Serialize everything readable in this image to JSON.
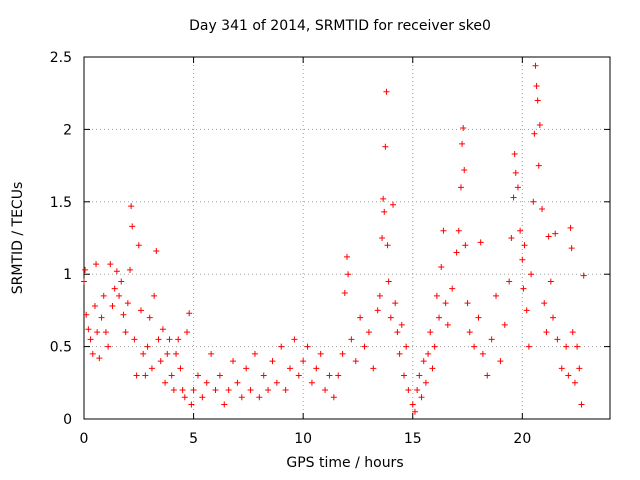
{
  "chart_data": {
    "type": "scatter",
    "title": "Day 341 of 2014, SRMTID for receiver ske0",
    "xlabel": "GPS time / hours",
    "ylabel": "SRMTID / TECUs",
    "xlim": [
      0,
      24
    ],
    "ylim": [
      0,
      2.5
    ],
    "xticks": [
      0,
      5,
      10,
      15,
      20
    ],
    "xtick_labels": [
      "0",
      "5",
      "10",
      "15",
      "20"
    ],
    "yticks": [
      0,
      0.5,
      1,
      1.5,
      2,
      2.5
    ],
    "ytick_labels": [
      "0",
      "0.5",
      "1",
      "1.5",
      "2",
      "2.5"
    ],
    "grid": true,
    "marker": "+",
    "color": "#ff0000",
    "series": [
      {
        "name": "SRMTID",
        "points": [
          [
            0.0,
            0.95
          ],
          [
            0.05,
            1.03
          ],
          [
            0.1,
            0.72
          ],
          [
            0.2,
            0.62
          ],
          [
            0.3,
            0.55
          ],
          [
            0.4,
            0.45
          ],
          [
            0.5,
            0.78
          ],
          [
            0.55,
            1.07
          ],
          [
            0.6,
            0.6
          ],
          [
            0.7,
            0.42
          ],
          [
            0.8,
            0.7
          ],
          [
            0.9,
            0.85
          ],
          [
            1.0,
            0.6
          ],
          [
            1.1,
            0.5
          ],
          [
            1.2,
            1.07
          ],
          [
            1.3,
            0.78
          ],
          [
            1.4,
            0.9
          ],
          [
            1.5,
            1.02
          ],
          [
            1.6,
            0.85
          ],
          [
            1.7,
            0.95
          ],
          [
            1.8,
            0.72
          ],
          [
            1.9,
            0.6
          ],
          [
            2.0,
            0.8
          ],
          [
            2.1,
            1.03
          ],
          [
            2.15,
            1.47
          ],
          [
            2.2,
            1.33
          ],
          [
            2.3,
            0.55
          ],
          [
            2.4,
            0.3
          ],
          [
            2.5,
            1.2
          ],
          [
            2.6,
            0.75
          ],
          [
            2.7,
            0.45
          ],
          [
            2.8,
            0.3
          ],
          [
            2.9,
            0.5
          ],
          [
            3.0,
            0.7
          ],
          [
            3.1,
            0.35
          ],
          [
            3.2,
            0.85
          ],
          [
            3.3,
            1.16
          ],
          [
            3.4,
            0.55
          ],
          [
            3.5,
            0.4
          ],
          [
            3.6,
            0.62
          ],
          [
            3.7,
            0.25
          ],
          [
            3.8,
            0.45
          ],
          [
            3.9,
            0.55
          ],
          [
            4.0,
            0.3
          ],
          [
            4.1,
            0.2
          ],
          [
            4.2,
            0.45
          ],
          [
            4.3,
            0.55
          ],
          [
            4.4,
            0.35
          ],
          [
            4.5,
            0.2
          ],
          [
            4.6,
            0.15
          ],
          [
            4.7,
            0.6
          ],
          [
            4.8,
            0.73
          ],
          [
            4.9,
            0.1
          ],
          [
            5.0,
            0.2
          ],
          [
            5.2,
            0.3
          ],
          [
            5.4,
            0.15
          ],
          [
            5.6,
            0.25
          ],
          [
            5.8,
            0.45
          ],
          [
            6.0,
            0.2
          ],
          [
            6.2,
            0.3
          ],
          [
            6.4,
            0.1
          ],
          [
            6.6,
            0.2
          ],
          [
            6.8,
            0.4
          ],
          [
            7.0,
            0.25
          ],
          [
            7.2,
            0.15
          ],
          [
            7.4,
            0.35
          ],
          [
            7.6,
            0.2
          ],
          [
            7.8,
            0.45
          ],
          [
            8.0,
            0.15
          ],
          [
            8.2,
            0.3
          ],
          [
            8.4,
            0.2
          ],
          [
            8.6,
            0.4
          ],
          [
            8.8,
            0.25
          ],
          [
            9.0,
            0.5
          ],
          [
            9.2,
            0.2
          ],
          [
            9.4,
            0.35
          ],
          [
            9.6,
            0.55
          ],
          [
            9.8,
            0.3
          ],
          [
            10.0,
            0.4
          ],
          [
            10.2,
            0.5
          ],
          [
            10.4,
            0.25
          ],
          [
            10.6,
            0.35
          ],
          [
            10.8,
            0.45
          ],
          [
            11.0,
            0.2
          ],
          [
            11.2,
            0.3
          ],
          [
            11.4,
            0.15
          ],
          [
            11.6,
            0.3
          ],
          [
            11.8,
            0.45
          ],
          [
            11.9,
            0.87
          ],
          [
            12.0,
            1.12
          ],
          [
            12.05,
            1.0
          ],
          [
            12.2,
            0.55
          ],
          [
            12.4,
            0.4
          ],
          [
            12.6,
            0.7
          ],
          [
            12.8,
            0.5
          ],
          [
            13.0,
            0.6
          ],
          [
            13.2,
            0.35
          ],
          [
            13.4,
            0.75
          ],
          [
            13.5,
            0.85
          ],
          [
            13.6,
            1.25
          ],
          [
            13.65,
            1.52
          ],
          [
            13.7,
            1.43
          ],
          [
            13.75,
            1.88
          ],
          [
            13.8,
            2.26
          ],
          [
            13.85,
            1.2
          ],
          [
            13.9,
            0.95
          ],
          [
            14.0,
            0.7
          ],
          [
            14.1,
            1.48
          ],
          [
            14.2,
            0.8
          ],
          [
            14.3,
            0.6
          ],
          [
            14.4,
            0.45
          ],
          [
            14.5,
            0.65
          ],
          [
            14.6,
            0.3
          ],
          [
            14.7,
            0.5
          ],
          [
            14.8,
            0.2
          ],
          [
            15.0,
            0.1
          ],
          [
            15.1,
            0.05
          ],
          [
            15.2,
            0.2
          ],
          [
            15.3,
            0.3
          ],
          [
            15.4,
            0.15
          ],
          [
            15.5,
            0.4
          ],
          [
            15.6,
            0.25
          ],
          [
            15.7,
            0.45
          ],
          [
            15.8,
            0.6
          ],
          [
            15.9,
            0.35
          ],
          [
            16.0,
            0.5
          ],
          [
            16.1,
            0.85
          ],
          [
            16.2,
            0.7
          ],
          [
            16.3,
            1.05
          ],
          [
            16.4,
            1.3
          ],
          [
            16.5,
            0.8
          ],
          [
            16.6,
            0.65
          ],
          [
            16.8,
            0.9
          ],
          [
            17.0,
            1.15
          ],
          [
            17.1,
            1.3
          ],
          [
            17.2,
            1.6
          ],
          [
            17.25,
            1.9
          ],
          [
            17.3,
            2.01
          ],
          [
            17.35,
            1.72
          ],
          [
            17.4,
            1.2
          ],
          [
            17.5,
            0.8
          ],
          [
            17.6,
            0.6
          ],
          [
            17.8,
            0.5
          ],
          [
            18.0,
            0.7
          ],
          [
            18.1,
            1.22
          ],
          [
            18.2,
            0.45
          ],
          [
            18.4,
            0.3
          ],
          [
            18.6,
            0.55
          ],
          [
            18.8,
            0.85
          ],
          [
            19.0,
            0.4
          ],
          [
            19.2,
            0.65
          ],
          [
            19.4,
            0.95
          ],
          [
            19.5,
            1.25
          ],
          [
            19.6,
            1.53
          ],
          [
            19.65,
            1.83
          ],
          [
            19.7,
            1.7
          ],
          [
            19.8,
            1.6
          ],
          [
            19.9,
            1.3
          ],
          [
            20.0,
            1.1
          ],
          [
            20.05,
            0.9
          ],
          [
            20.1,
            1.2
          ],
          [
            20.2,
            0.75
          ],
          [
            20.3,
            0.5
          ],
          [
            20.4,
            1.0
          ],
          [
            20.5,
            1.5
          ],
          [
            20.55,
            1.97
          ],
          [
            20.6,
            2.44
          ],
          [
            20.65,
            2.3
          ],
          [
            20.7,
            2.2
          ],
          [
            20.75,
            1.75
          ],
          [
            20.8,
            2.03
          ],
          [
            20.9,
            1.45
          ],
          [
            21.0,
            0.8
          ],
          [
            21.1,
            0.6
          ],
          [
            21.2,
            1.26
          ],
          [
            21.3,
            0.95
          ],
          [
            21.4,
            0.7
          ],
          [
            21.5,
            1.28
          ],
          [
            21.6,
            0.55
          ],
          [
            21.8,
            0.35
          ],
          [
            22.0,
            0.5
          ],
          [
            22.1,
            0.3
          ],
          [
            22.2,
            1.32
          ],
          [
            22.25,
            1.18
          ],
          [
            22.3,
            0.6
          ],
          [
            22.4,
            0.25
          ],
          [
            22.5,
            0.5
          ],
          [
            22.6,
            0.35
          ],
          [
            22.7,
            0.1
          ],
          [
            22.8,
            0.99
          ]
        ]
      }
    ]
  }
}
